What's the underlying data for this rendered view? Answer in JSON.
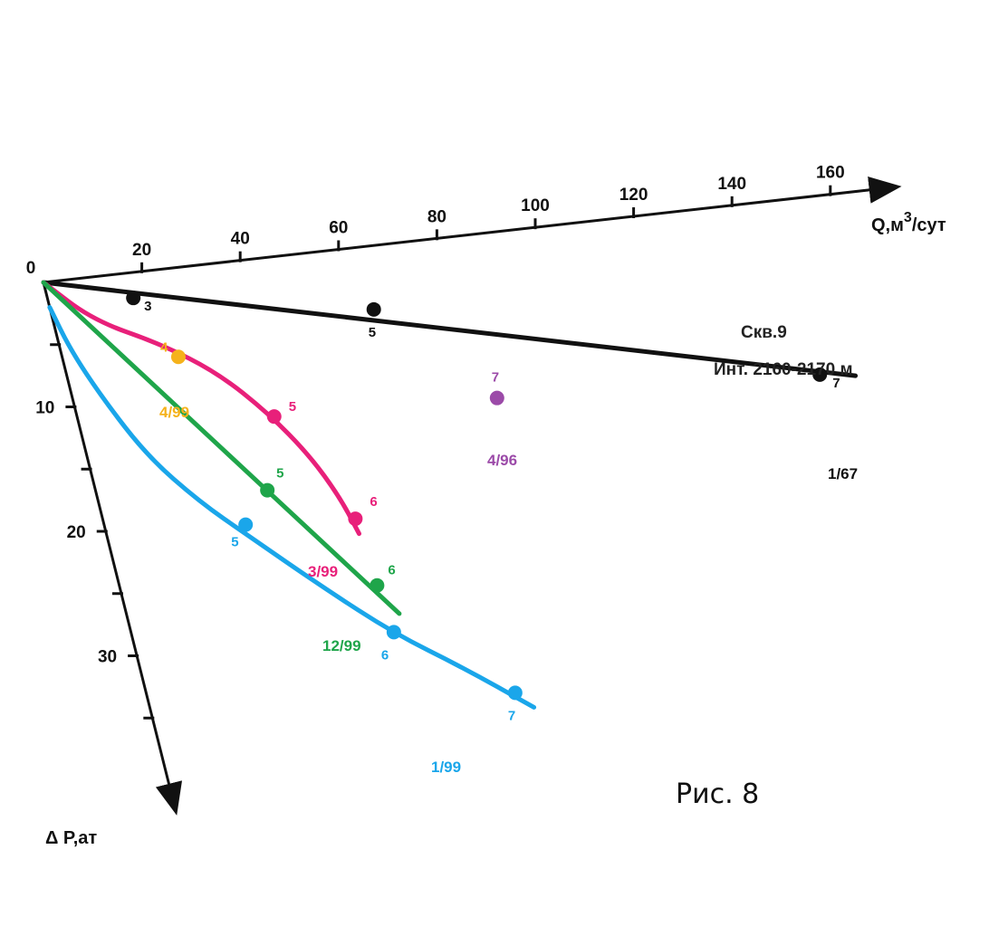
{
  "chart_data": {
    "type": "line",
    "x_axis": {
      "label": "Q,м",
      "label_sup": "3",
      "label_tail": "/сут",
      "ticks": [
        20,
        40,
        60,
        80,
        100,
        120,
        140,
        160
      ],
      "range": [
        0,
        170
      ]
    },
    "y_axis": {
      "label": "Δ P,ат",
      "ticks": [
        10,
        20,
        30
      ],
      "minor_ticks": [
        5,
        15,
        25,
        35
      ],
      "range": [
        0,
        40
      ],
      "inverted": true
    },
    "origin_label": "0",
    "well": {
      "title": "Скв.9",
      "interval": "Инт. 2160-2170 м"
    },
    "series": [
      {
        "name": "1/67",
        "color": "#111111",
        "line": [
          [
            0,
            0
          ],
          [
            156,
            14.4
          ]
        ],
        "points": [
          {
            "x": 17,
            "y": 2,
            "label": "3"
          },
          {
            "x": 64,
            "y": 5,
            "label": "5"
          },
          {
            "x": 149,
            "y": 14,
            "label": "7"
          }
        ]
      },
      {
        "name": "4/99",
        "color": "#f5b21b",
        "line": [],
        "points": [
          {
            "x": 23,
            "y": 7,
            "label": "4"
          }
        ]
      },
      {
        "name": "3/99",
        "color": "#e8207a",
        "line": [
          [
            0,
            0
          ],
          [
            8,
            3.4
          ],
          [
            20,
            5.8
          ],
          [
            30,
            8.6
          ],
          [
            38,
            12.2
          ],
          [
            44,
            15.8
          ],
          [
            48,
            19.4
          ],
          [
            50,
            22.4
          ]
        ],
        "points": [
          {
            "x": 39,
            "y": 12.5,
            "label": "5"
          },
          {
            "x": 50,
            "y": 21.2,
            "label": "6"
          }
        ]
      },
      {
        "name": "12/99",
        "color": "#1fa54a",
        "line": [
          [
            0,
            0
          ],
          [
            54,
            29
          ]
        ],
        "points": [
          {
            "x": 34,
            "y": 18.2,
            "label": "5"
          },
          {
            "x": 51,
            "y": 26.6,
            "label": "6"
          }
        ]
      },
      {
        "name": "1/99",
        "color": "#1aa6ea",
        "line": [
          [
            0,
            2
          ],
          [
            2,
            5.5
          ],
          [
            6,
            9.6
          ],
          [
            12,
            14.5
          ],
          [
            20,
            18.5
          ],
          [
            28,
            21.6
          ],
          [
            40,
            26.2
          ],
          [
            52,
            30.5
          ],
          [
            64,
            33.8
          ],
          [
            76,
            37.5
          ]
        ],
        "points": [
          {
            "x": 28,
            "y": 20.7,
            "label": "5"
          },
          {
            "x": 52,
            "y": 30.4,
            "label": "6"
          },
          {
            "x": 73,
            "y": 36.2,
            "label": "7"
          }
        ]
      },
      {
        "name": "4/96",
        "color": "#9b4aa8",
        "line": [],
        "points": [
          {
            "x": 84,
            "y": 13,
            "label": "7"
          }
        ]
      }
    ]
  },
  "caption": "Рис. 8"
}
